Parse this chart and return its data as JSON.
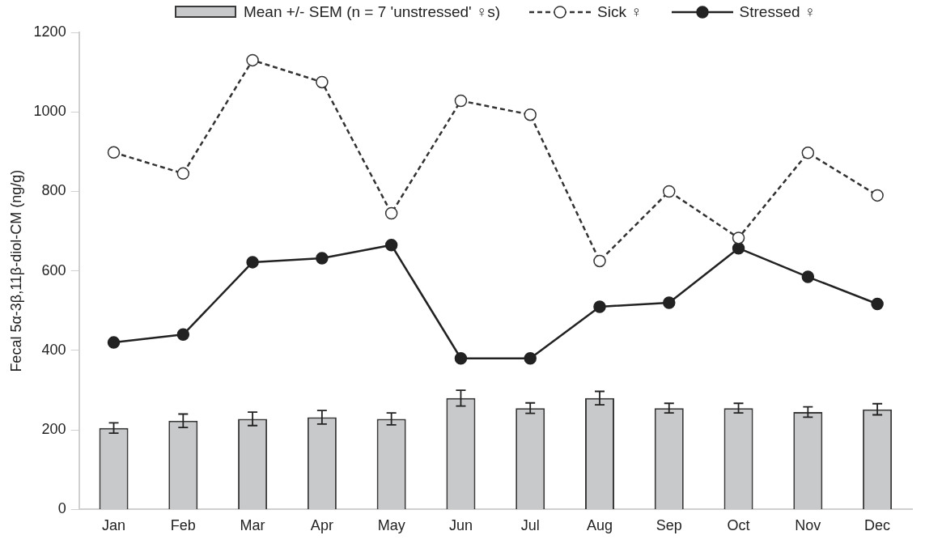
{
  "chart_data": {
    "type": "bar",
    "ylabel": "Fecal 5α-3β,11β-diol-CM (ng/g)",
    "categories": [
      "Jan",
      "Feb",
      "Mar",
      "Apr",
      "May",
      "Jun",
      "Jul",
      "Aug",
      "Sep",
      "Oct",
      "Nov",
      "Dec"
    ],
    "series": [
      {
        "name": "Mean +/- SEM (n = 7 'unstressed' ♀s)",
        "color": "#c8c9cb",
        "values": [
          205,
          223,
          228,
          232,
          228,
          280,
          255,
          280,
          255,
          255,
          245,
          252
        ],
        "errors": [
          13,
          17,
          17,
          17,
          15,
          20,
          13,
          17,
          12,
          12,
          13,
          14
        ]
      },
      {
        "name": "Sick ♀",
        "type": "line",
        "color": "#333333",
        "line_style": "dashed",
        "marker": "circle",
        "values": [
          898,
          845,
          1130,
          1075,
          745,
          1028,
          993,
          625,
          800,
          683,
          897,
          790
        ]
      },
      {
        "name": "Stressed ♀",
        "type": "line",
        "color": "#222222",
        "line_style": "solid",
        "marker": "circle",
        "values": [
          420,
          440,
          622,
          632,
          665,
          380,
          380,
          510,
          520,
          657,
          585,
          517
        ]
      }
    ],
    "ylim": [
      0,
      1200
    ],
    "yticks": [
      0,
      200,
      400,
      600,
      800,
      1000,
      1200
    ],
    "grid": false,
    "legend": "top"
  }
}
